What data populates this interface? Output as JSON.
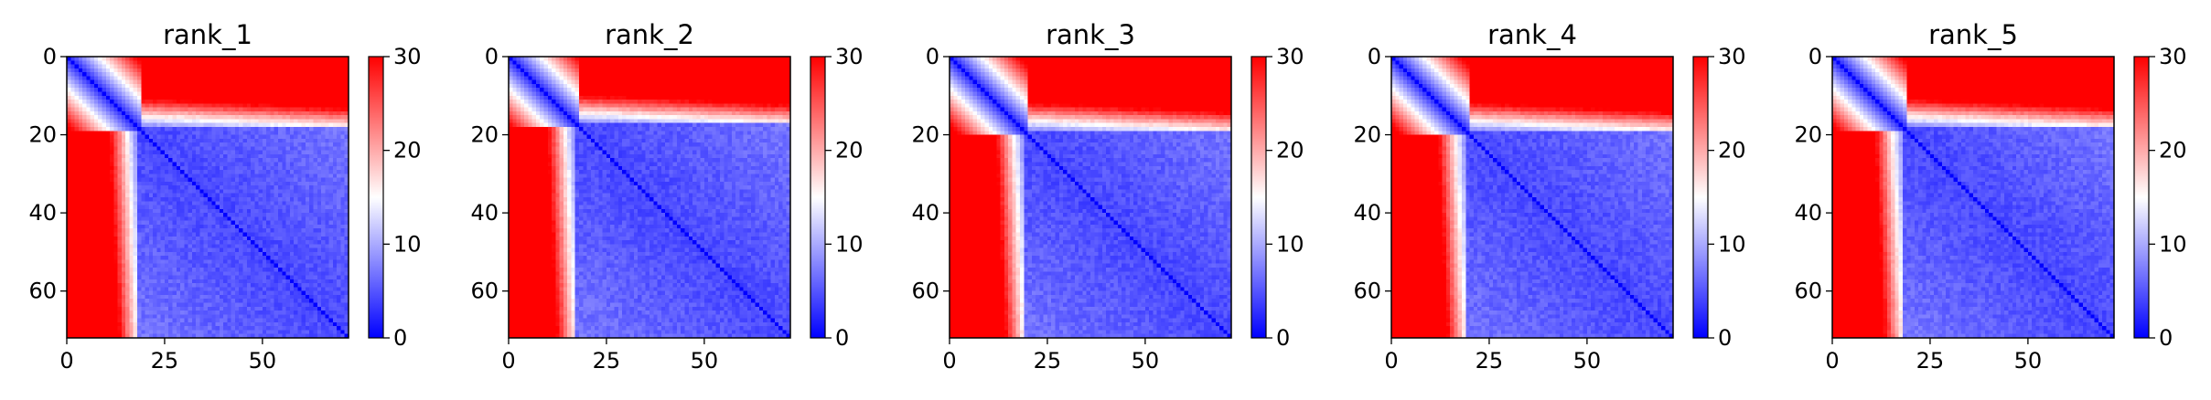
{
  "chart_data": [
    {
      "type": "heatmap",
      "title": "rank_1",
      "matrix_size": 72,
      "block_split": 18,
      "gap_rows": 10,
      "xticks": [
        0,
        25,
        50
      ],
      "yticks": [
        0,
        20,
        40,
        60
      ],
      "colorbar": {
        "min": 0,
        "max": 30,
        "ticks": [
          0,
          10,
          20,
          30
        ],
        "colors": [
          "#0000ff",
          "#ffffff",
          "#ff0000"
        ]
      }
    },
    {
      "type": "heatmap",
      "title": "rank_2",
      "matrix_size": 72,
      "block_split": 17,
      "gap_rows": 13,
      "xticks": [
        0,
        25,
        50
      ],
      "yticks": [
        0,
        20,
        40,
        60
      ],
      "colorbar": {
        "min": 0,
        "max": 30,
        "ticks": [
          0,
          10,
          20,
          30
        ],
        "colors": [
          "#0000ff",
          "#ffffff",
          "#ff0000"
        ]
      }
    },
    {
      "type": "heatmap",
      "title": "rank_3",
      "matrix_size": 72,
      "block_split": 19,
      "gap_rows": 13,
      "xticks": [
        0,
        25,
        50
      ],
      "yticks": [
        0,
        20,
        40,
        60
      ],
      "colorbar": {
        "min": 0,
        "max": 30,
        "ticks": [
          0,
          10,
          20,
          30
        ],
        "colors": [
          "#0000ff",
          "#ffffff",
          "#ff0000"
        ]
      }
    },
    {
      "type": "heatmap",
      "title": "rank_4",
      "matrix_size": 72,
      "block_split": 19,
      "gap_rows": 13,
      "xticks": [
        0,
        25,
        50
      ],
      "yticks": [
        0,
        20,
        40,
        60
      ],
      "colorbar": {
        "min": 0,
        "max": 30,
        "ticks": [
          0,
          10,
          20,
          30
        ],
        "colors": [
          "#0000ff",
          "#ffffff",
          "#ff0000"
        ]
      }
    },
    {
      "type": "heatmap",
      "title": "rank_5",
      "matrix_size": 72,
      "block_split": 18,
      "gap_rows": 12,
      "xticks": [
        0,
        25,
        50
      ],
      "yticks": [
        0,
        20,
        40,
        60
      ],
      "colorbar": {
        "min": 0,
        "max": 30,
        "ticks": [
          0,
          10,
          20,
          30
        ],
        "colors": [
          "#0000ff",
          "#ffffff",
          "#ff0000"
        ]
      }
    }
  ]
}
